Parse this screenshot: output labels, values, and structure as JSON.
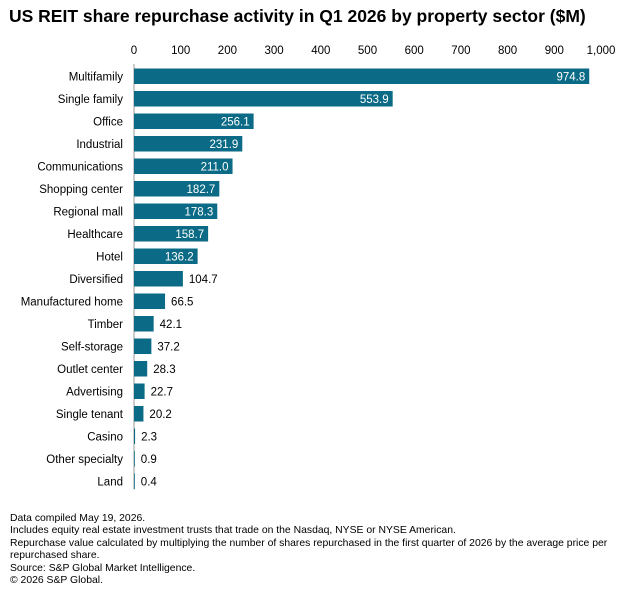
{
  "chart_data": {
    "type": "bar",
    "orientation": "horizontal",
    "title": "US REIT share repurchase activity in Q1 2026 by property sector ($M)",
    "xlabel": "",
    "ylabel": "",
    "xlim": [
      0,
      1000
    ],
    "ticks": [
      0,
      100,
      200,
      300,
      400,
      500,
      600,
      700,
      800,
      900,
      1000
    ],
    "tick_labels": [
      "0",
      "100",
      "200",
      "300",
      "400",
      "500",
      "600",
      "700",
      "800",
      "900",
      "1,000"
    ],
    "tick_position": "top",
    "grid": false,
    "categories": [
      "Multifamily",
      "Single family",
      "Office",
      "Industrial",
      "Communications",
      "Shopping center",
      "Regional mall",
      "Healthcare",
      "Hotel",
      "Diversified",
      "Manufactured home",
      "Timber",
      "Self-storage",
      "Outlet center",
      "Advertising",
      "Single tenant",
      "Casino",
      "Other specialty",
      "Land"
    ],
    "values": [
      974.8,
      553.9,
      256.1,
      231.9,
      211.0,
      182.7,
      178.3,
      158.7,
      136.2,
      104.7,
      66.5,
      42.1,
      37.2,
      28.3,
      22.7,
      20.2,
      2.3,
      0.9,
      0.4
    ],
    "value_labels": [
      "974.8",
      "553.9",
      "256.1",
      "231.9",
      "211.0",
      "182.7",
      "178.3",
      "158.7",
      "136.2",
      "104.7",
      "66.5",
      "42.1",
      "37.2",
      "28.3",
      "22.7",
      "20.2",
      "2.3",
      "0.9",
      "0.4"
    ],
    "bar_color": "#0b6a85",
    "inside_label_color": "#ffffff",
    "outside_label_color": "#000000"
  },
  "notes": [
    "Data compiled May 19, 2026.",
    "Includes equity real estate investment trusts that trade on the Nasdaq, NYSE or NYSE American.",
    "Repurchase value calculated by multiplying the number of shares repurchased in the first quarter of 2026 by the average price per repurchased share.",
    "Source: S&P Global Market Intelligence.",
    "© 2026 S&P Global."
  ]
}
